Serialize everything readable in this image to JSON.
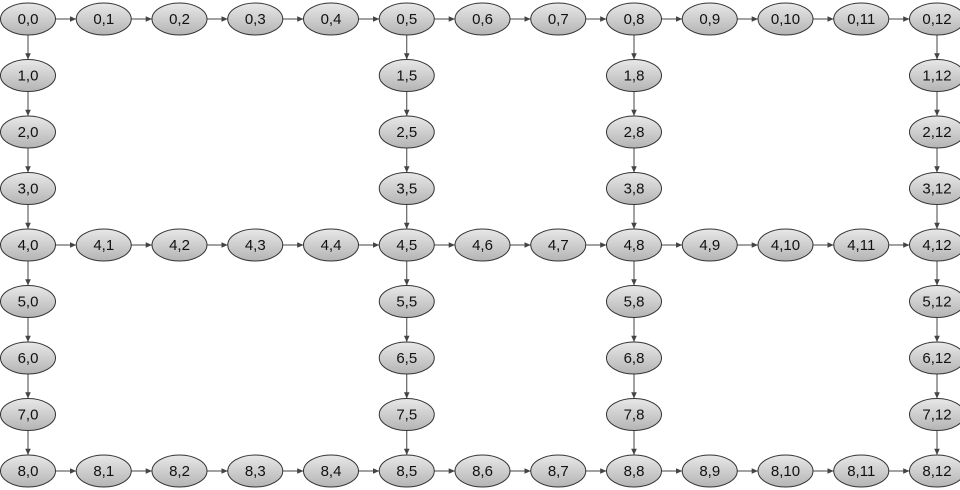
{
  "diagram": {
    "type": "directed-graph",
    "node_fill_top": "#e8e8e8",
    "node_fill_bottom": "#b4b4b4",
    "edge_color": "#444444",
    "rows": [
      0,
      1,
      2,
      3,
      4,
      5,
      6,
      7,
      8
    ],
    "cols": [
      0,
      1,
      2,
      3,
      4,
      5,
      6,
      7,
      8,
      9,
      10,
      11,
      12
    ],
    "full_rows": [
      0,
      4,
      8
    ],
    "full_cols": [
      0,
      5,
      8,
      12
    ],
    "nodes": [
      "0,0",
      "0,1",
      "0,2",
      "0,3",
      "0,4",
      "0,5",
      "0,6",
      "0,7",
      "0,8",
      "0,9",
      "0,10",
      "0,11",
      "0,12",
      "1,0",
      "1,5",
      "1,8",
      "1,12",
      "2,0",
      "2,5",
      "2,8",
      "2,12",
      "3,0",
      "3,5",
      "3,8",
      "3,12",
      "4,0",
      "4,1",
      "4,2",
      "4,3",
      "4,4",
      "4,5",
      "4,6",
      "4,7",
      "4,8",
      "4,9",
      "4,10",
      "4,11",
      "4,12",
      "5,0",
      "5,5",
      "5,8",
      "5,12",
      "6,0",
      "6,5",
      "6,8",
      "6,12",
      "7,0",
      "7,5",
      "7,8",
      "7,12",
      "8,0",
      "8,1",
      "8,2",
      "8,3",
      "8,4",
      "8,5",
      "8,6",
      "8,7",
      "8,8",
      "8,9",
      "8,10",
      "8,11",
      "8,12"
    ]
  }
}
